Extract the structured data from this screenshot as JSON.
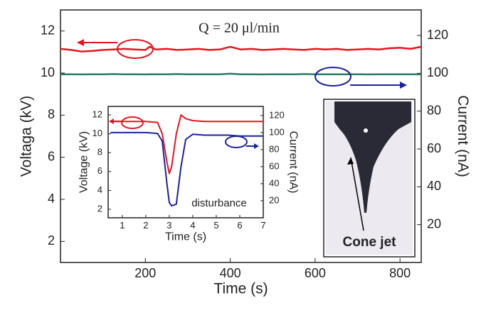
{
  "chart_data": [
    {
      "type": "line",
      "x_label": "Time (s)",
      "y_label": "Voltaga (kV)",
      "y2_label": "Current (nA)",
      "annotations": [
        "Q = 20 μl/min",
        "Cone jet"
      ],
      "xlim": [
        0,
        850
      ],
      "xticks": [
        200,
        400,
        600,
        800
      ],
      "ylim": [
        1,
        13
      ],
      "yticks": [
        2,
        4,
        6,
        8,
        10,
        12
      ],
      "y2lim": [
        0,
        133.5
      ],
      "y2ticks": [
        20,
        40,
        60,
        80,
        100,
        120
      ],
      "x": [
        0,
        25,
        50,
        75,
        100,
        125,
        150,
        175,
        200,
        210,
        225,
        250,
        275,
        300,
        325,
        350,
        375,
        400,
        425,
        450,
        475,
        500,
        525,
        550,
        575,
        600,
        625,
        650,
        675,
        700,
        725,
        750,
        775,
        800,
        825,
        850
      ],
      "series": [
        {
          "color": "#e8141c",
          "values": [
            11.15,
            11.1,
            11.02,
            11.05,
            11.1,
            11.12,
            11.15,
            11.12,
            11.1,
            11.25,
            11.12,
            11.15,
            11.1,
            11.12,
            11.15,
            11.1,
            11.12,
            11.25,
            11.12,
            11.15,
            11.1,
            11.12,
            11.15,
            11.12,
            11.1,
            11.15,
            11.12,
            11.15,
            11.1,
            11.12,
            11.15,
            11.12,
            11.18,
            11.2,
            11.15,
            11.25
          ]
        },
        {
          "color": "#2a7a6a",
          "axis": "y2",
          "values": [
            99.5,
            99.5,
            99.4,
            99.5,
            99.5,
            99.6,
            99.5,
            99.5,
            99.4,
            99.5,
            99.5,
            99.5,
            99.6,
            99.5,
            99.5,
            99.5,
            99.5,
            99.8,
            99.5,
            99.5,
            99.4,
            99.5,
            99.5,
            99.5,
            99.6,
            99.5,
            99.5,
            99.5,
            99.5,
            99.5,
            99.4,
            99.5,
            99.5,
            99.5,
            99.5,
            99.5
          ]
        }
      ]
    },
    {
      "type": "line",
      "x_label": "Time (s)",
      "y_label": "Voltage (kV)",
      "y2_label": "Current (nA)",
      "annotations": [
        "disturbance"
      ],
      "xlim": [
        0.4,
        7
      ],
      "xticks": [
        1,
        2,
        3,
        4,
        5,
        6,
        7
      ],
      "ylim": [
        1.1,
        12.9
      ],
      "yticks": [
        2,
        4,
        6,
        8,
        10,
        12
      ],
      "y2lim": [
        0,
        130.7
      ],
      "y2ticks": [
        20,
        40,
        60,
        80,
        100,
        120
      ],
      "x": [
        0.5,
        1,
        1.5,
        2,
        2.5,
        2.7,
        2.9,
        3.0,
        3.1,
        3.3,
        3.5,
        3.7,
        4,
        4.5,
        5,
        5.5,
        6,
        6.5,
        7
      ],
      "series": [
        {
          "color": "#e8141c",
          "values": [
            11.3,
            11.3,
            11.3,
            11.3,
            11.2,
            10,
            7,
            5.8,
            6.5,
            10,
            12,
            11.6,
            11.4,
            11.3,
            11.3,
            11.3,
            11.3,
            11.3,
            11.3
          ]
        },
        {
          "color": "#1a22a0",
          "axis": "y2",
          "values": [
            100,
            100,
            100,
            100,
            99,
            90,
            40,
            18,
            14,
            16,
            60,
            92,
            98,
            97,
            97,
            97,
            96,
            96,
            96
          ]
        }
      ]
    }
  ]
}
